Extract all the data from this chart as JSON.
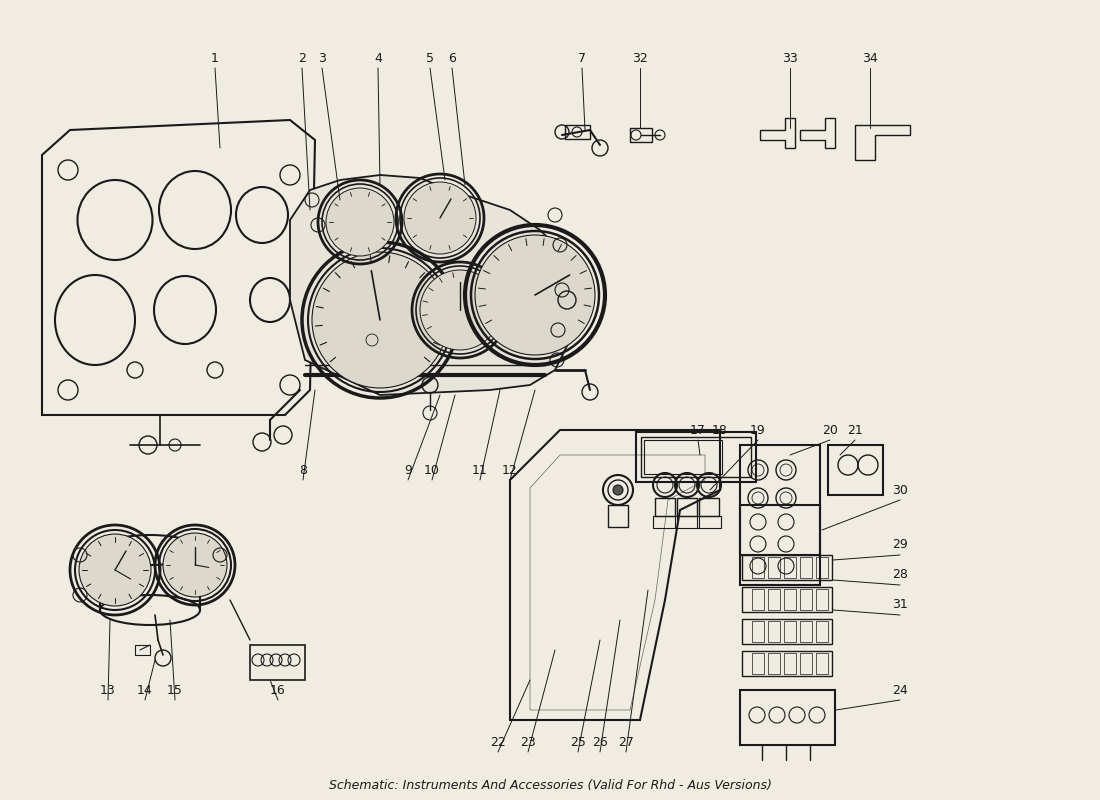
{
  "title": "Schematic: Instruments And Accessories (Valid For Rhd - Aus Versions)",
  "bg_color": "#f0ece2",
  "line_color": "#1a1a1a",
  "text_color": "#1a1a1a",
  "figsize": [
    11.0,
    8.0
  ],
  "dpi": 100
}
